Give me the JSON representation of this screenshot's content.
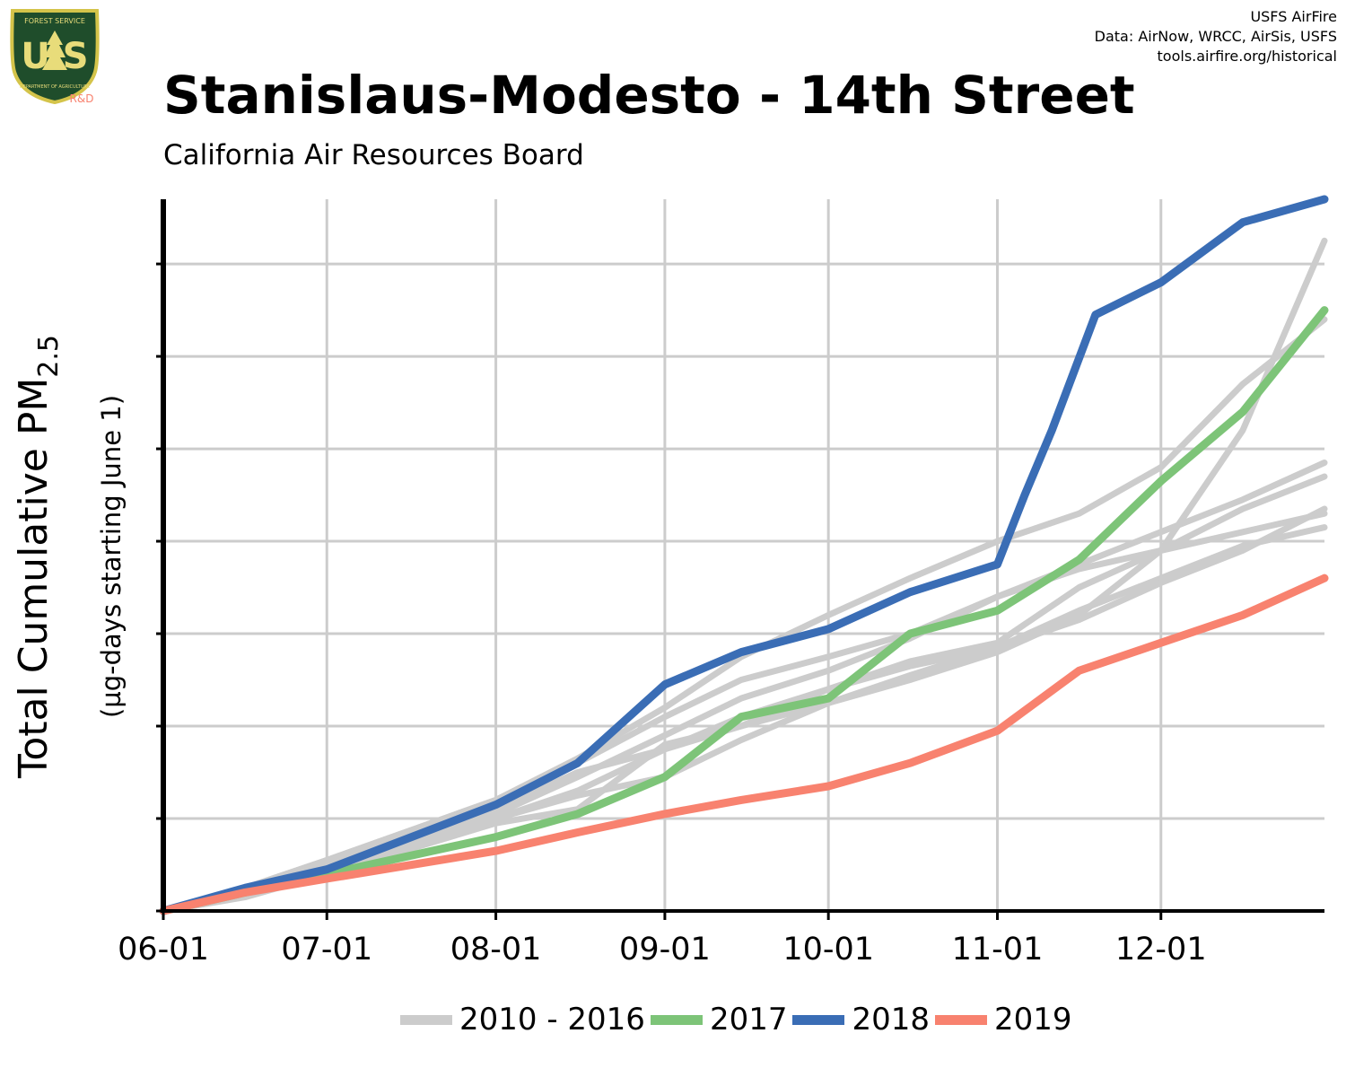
{
  "header": {
    "credits": [
      "USFS AirFire",
      "Data: AirNow, WRCC, AirSis, USFS",
      "tools.airfire.org/historical"
    ],
    "title": "Stanislaus-Modesto - 14th Street",
    "subtitle": "California Air Resources Board",
    "logo": {
      "top_text": "FOREST SERVICE",
      "letters": "U S",
      "bottom_text": "DEPARTMENT OF AGRICULTURE",
      "rd": "R&D"
    }
  },
  "chart_data": {
    "type": "line",
    "title": "Stanislaus-Modesto - 14th Street",
    "subtitle": "California Air Resources Board",
    "ylabel_main": "Total Cumulative PM",
    "ylabel_sub": "2.5",
    "ylabel_note": "(µg-days starting June 1)",
    "xlabel": "",
    "x_ticks": [
      "06-01",
      "07-01",
      "08-01",
      "09-01",
      "10-01",
      "11-01",
      "12-01"
    ],
    "x_tick_days": [
      0,
      30,
      61,
      92,
      122,
      153,
      183
    ],
    "xlim": [
      0,
      213
    ],
    "ylim": [
      0,
      7.7
    ],
    "y_tick_values": [
      0,
      1,
      2,
      3,
      4,
      5,
      6,
      7
    ],
    "y_tick_labels_visible": false,
    "grid": true,
    "legend_position": "bottom",
    "colors": {
      "historical": "#cccccc",
      "2017": "#7dc478",
      "2018": "#3a6db5",
      "2019": "#f8826f"
    },
    "series": [
      {
        "name": "2010 - 2016",
        "group": "historical",
        "x": [
          0,
          15,
          30,
          61,
          76,
          92,
          106,
          122,
          137,
          153,
          168,
          183,
          198,
          213
        ],
        "y": [
          0,
          0.25,
          0.55,
          1.2,
          1.6,
          2.1,
          2.5,
          2.75,
          3.0,
          3.4,
          3.75,
          4.1,
          4.45,
          4.85
        ]
      },
      {
        "group": "historical",
        "x": [
          0,
          15,
          30,
          61,
          76,
          92,
          106,
          122,
          137,
          153,
          168,
          183,
          198,
          213
        ],
        "y": [
          0,
          0.2,
          0.45,
          1.0,
          1.3,
          1.75,
          2.1,
          2.4,
          2.7,
          2.9,
          3.5,
          3.9,
          4.35,
          4.7
        ]
      },
      {
        "group": "historical",
        "x": [
          0,
          15,
          30,
          61,
          76,
          92,
          106,
          122,
          137,
          153,
          168,
          183,
          198,
          213
        ],
        "y": [
          0,
          0.22,
          0.48,
          1.05,
          1.45,
          1.9,
          2.3,
          2.6,
          2.95,
          3.4,
          3.7,
          3.9,
          4.1,
          4.3
        ]
      },
      {
        "group": "historical",
        "x": [
          0,
          15,
          30,
          61,
          76,
          92,
          106,
          122,
          137,
          153,
          168,
          183,
          198,
          213
        ],
        "y": [
          0,
          0.25,
          0.55,
          1.0,
          1.25,
          1.45,
          1.85,
          2.25,
          2.55,
          2.85,
          3.25,
          3.6,
          3.95,
          4.15
        ]
      },
      {
        "group": "historical",
        "x": [
          0,
          15,
          30,
          61,
          76,
          92,
          106,
          122,
          137,
          153,
          168,
          183,
          198,
          213
        ],
        "y": [
          0,
          0.2,
          0.5,
          1.1,
          1.5,
          1.75,
          2.0,
          2.25,
          2.5,
          2.8,
          3.2,
          3.9,
          5.2,
          7.25
        ]
      },
      {
        "group": "historical",
        "x": [
          0,
          15,
          30,
          61,
          76,
          92,
          106,
          122,
          137,
          153,
          168,
          183,
          198,
          213
        ],
        "y": [
          0,
          0.2,
          0.55,
          1.2,
          1.65,
          2.2,
          2.75,
          3.2,
          3.6,
          4.0,
          4.3,
          4.8,
          5.7,
          6.4
        ]
      },
      {
        "group": "historical",
        "x": [
          0,
          15,
          30,
          61,
          76,
          92,
          106,
          122,
          137,
          153,
          168,
          183,
          198,
          213
        ],
        "y": [
          0,
          0.15,
          0.4,
          0.95,
          1.1,
          1.8,
          2.0,
          2.4,
          2.65,
          2.85,
          3.15,
          3.55,
          3.9,
          4.35
        ]
      },
      {
        "name": "2017",
        "group": "2017",
        "x": [
          0,
          15,
          30,
          61,
          76,
          92,
          106,
          122,
          137,
          153,
          168,
          183,
          198,
          213
        ],
        "y": [
          0,
          0.2,
          0.4,
          0.8,
          1.05,
          1.45,
          2.1,
          2.3,
          3.0,
          3.25,
          3.8,
          4.65,
          5.4,
          6.5
        ]
      },
      {
        "name": "2018",
        "group": "2018",
        "x": [
          0,
          15,
          30,
          61,
          76,
          92,
          106,
          122,
          137,
          153,
          158,
          163,
          171,
          183,
          198,
          213
        ],
        "y": [
          0,
          0.25,
          0.45,
          1.15,
          1.6,
          2.45,
          2.8,
          3.05,
          3.45,
          3.75,
          4.5,
          5.2,
          6.45,
          6.8,
          7.45,
          7.7
        ]
      },
      {
        "name": "2019",
        "group": "2019",
        "x": [
          0,
          15,
          30,
          61,
          76,
          92,
          106,
          122,
          137,
          153,
          168,
          183,
          198,
          213
        ],
        "y": [
          0,
          0.2,
          0.35,
          0.65,
          0.85,
          1.05,
          1.2,
          1.35,
          1.6,
          1.95,
          2.6,
          2.9,
          3.2,
          3.6
        ]
      }
    ]
  }
}
